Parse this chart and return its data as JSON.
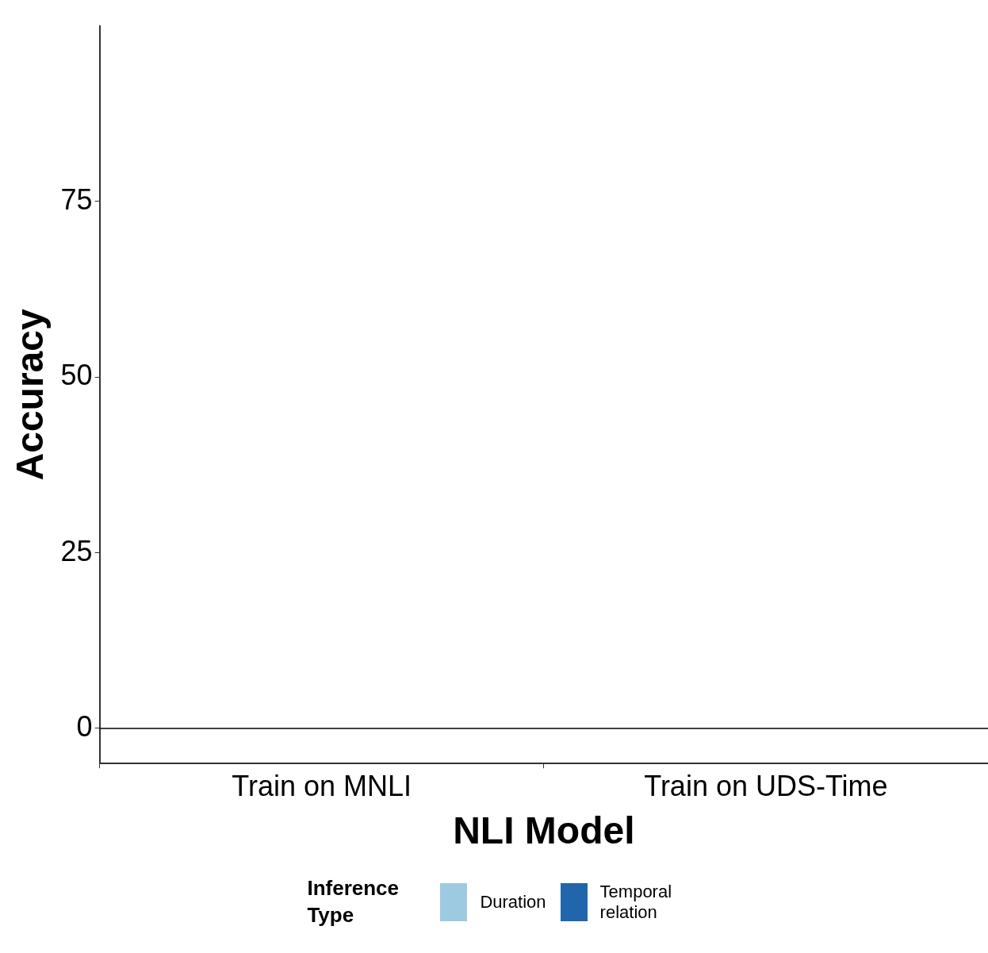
{
  "chart_data": {
    "type": "bar",
    "xlabel": "NLI Model",
    "ylabel": "Accuracy",
    "legend_title": "Inference Type",
    "categories": [
      "Train on MNLI",
      "Train on UDS-Time"
    ],
    "series": [
      {
        "name": "Duration",
        "color": "#9ecae1",
        "values": [
          0,
          0
        ]
      },
      {
        "name": "Temporal relation",
        "color": "#2166ac",
        "values": [
          0,
          0
        ]
      }
    ],
    "ylim": [
      -5,
      100
    ],
    "yticks": [
      0,
      25,
      50,
      75
    ],
    "ref_lines": [
      {
        "axis": "y",
        "value": 0,
        "color": "#000000"
      }
    ],
    "grid": false,
    "legend": "bottom"
  }
}
